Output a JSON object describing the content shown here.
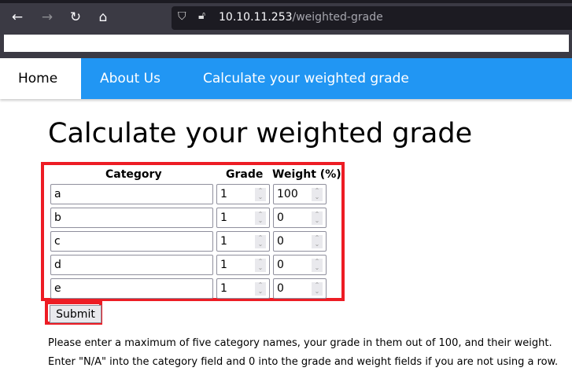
{
  "browser": {
    "url_host": "10.10.11.253",
    "url_path": "/weighted-grade"
  },
  "nav": {
    "items": [
      {
        "label": "Home"
      },
      {
        "label": "About Us"
      },
      {
        "label": "Calculate your weighted grade"
      }
    ]
  },
  "page": {
    "title": "Calculate your weighted grade"
  },
  "form": {
    "headers": {
      "category": "Category",
      "grade": "Grade",
      "weight": "Weight (%)"
    },
    "rows": [
      {
        "category": "a",
        "grade": "1",
        "weight": "100"
      },
      {
        "category": "b",
        "grade": "1",
        "weight": "0"
      },
      {
        "category": "c",
        "grade": "1",
        "weight": "0"
      },
      {
        "category": "d",
        "grade": "1",
        "weight": "0"
      },
      {
        "category": "e",
        "grade": "1",
        "weight": "0"
      }
    ],
    "submit_label": "Submit"
  },
  "instructions": [
    "Please enter a maximum of five category names, your grade in them out of 100, and their weight.",
    "Enter \"N/A\" into the category field and 0 into the grade and weight fields if you are not using a row."
  ],
  "colors": {
    "nav": "#2196f3",
    "highlight": "#ed1c24"
  }
}
